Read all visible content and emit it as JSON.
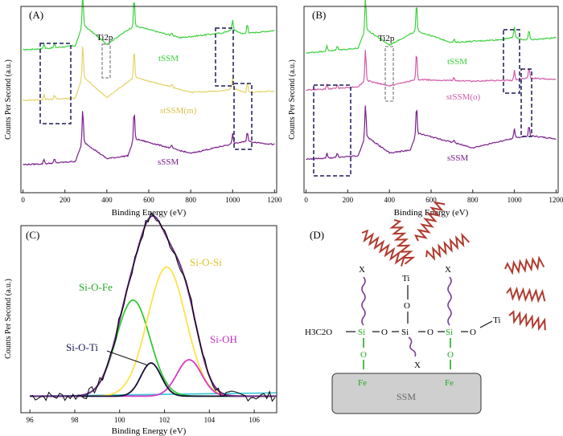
{
  "panels": {
    "A": {
      "label": "(A)",
      "ylabel": "Counts Per Second (a.u.)",
      "xlabel": "Binding Energy (eV)",
      "xticks": [
        "0",
        "200",
        "400",
        "600",
        "800",
        "1000",
        "1200"
      ],
      "annotation": "Ti2p",
      "series_labels": [
        "tSSM",
        "stSSM(m)",
        "sSSM"
      ]
    },
    "B": {
      "label": "(B)",
      "ylabel": "Counts Per Second (a.u.)",
      "xlabel": "Binding Energy (eV)",
      "xticks": [
        "0",
        "200",
        "400",
        "600",
        "800",
        "1000",
        "1200"
      ],
      "annotation": "Ti2p",
      "series_labels": [
        "tSSM",
        "stSSM(o)",
        "sSSM"
      ]
    },
    "C": {
      "label": "(C)",
      "ylabel": "Counts Per Second (a.u.)",
      "xlabel": "Binding Energy (eV)",
      "xticks": [
        "96",
        "98",
        "100",
        "102",
        "104",
        "106"
      ],
      "peak_labels": [
        "Si-O-Si",
        "Si-O-Fe",
        "Si-OH",
        "Si-O-Ti"
      ]
    },
    "D": {
      "label": "(D)",
      "substrate": "SSM",
      "group_left": "H3C2O",
      "atoms": {
        "si": "Si",
        "o": "O",
        "fe": "Fe",
        "ti": "Ti",
        "x": "X"
      }
    }
  },
  "colors": {
    "tSSM": "#3ed13e",
    "stSSM_m": "#e3d36a",
    "stSSM_o": "#d25aa8",
    "sSSM": "#7a1f8c",
    "si_o_fe": "#33cc33",
    "si_o_si": "#ffe14a",
    "si_oh": "#d838c8",
    "si_o_ti": "#111133",
    "envelope": "#6a2a8a",
    "baseline": "#35c7d6",
    "annotation_box": "#1a1a5c",
    "ti_box": "#888888",
    "polymer": "#b03a2e",
    "linker": "#7a3d9c",
    "substrate_fill": "#cfcfcf"
  },
  "chart_data": [
    {
      "type": "line",
      "panel": "A",
      "xlabel": "Binding Energy (eV)",
      "ylabel": "Counts Per Second (a.u.)",
      "xlim": [
        -10,
        1210
      ],
      "series": [
        {
          "name": "tSSM",
          "x": [
            0,
            100,
            250,
            285,
            400,
            530,
            750,
            950,
            1000,
            1050,
            1200
          ],
          "y": [
            0.32,
            0.35,
            0.42,
            0.95,
            0.46,
            0.92,
            0.62,
            0.74,
            0.82,
            0.72,
            0.8
          ]
        },
        {
          "name": "stSSM(m)",
          "x": [
            0,
            100,
            250,
            285,
            400,
            530,
            800,
            960,
            1000,
            1060,
            1200
          ],
          "y": [
            0.02,
            0.04,
            0.08,
            0.62,
            0.09,
            0.6,
            0.22,
            0.26,
            0.33,
            0.22,
            0.25
          ]
        },
        {
          "name": "sSSM",
          "x": [
            0,
            100,
            250,
            285,
            400,
            500,
            530,
            800,
            1000,
            1070,
            1200
          ],
          "y": [
            -0.3,
            -0.28,
            -0.22,
            0.28,
            -0.15,
            -0.08,
            0.35,
            -0.02,
            0.22,
            0.28,
            0.2
          ]
        }
      ]
    },
    {
      "type": "line",
      "panel": "B",
      "xlabel": "Binding Energy (eV)",
      "ylabel": "Counts Per Second (a.u.)",
      "xlim": [
        -10,
        1210
      ],
      "series": [
        {
          "name": "tSSM",
          "x": [
            0,
            100,
            250,
            285,
            400,
            530,
            700,
            950,
            1000,
            1050,
            1200
          ],
          "y": [
            0.4,
            0.45,
            0.52,
            1.0,
            0.6,
            0.95,
            0.66,
            0.74,
            0.8,
            0.72,
            0.78
          ]
        },
        {
          "name": "stSSM(o)",
          "x": [
            0,
            100,
            250,
            285,
            400,
            530,
            800,
            1000,
            1060,
            1200
          ],
          "y": [
            0.14,
            0.16,
            0.22,
            0.38,
            0.24,
            0.4,
            0.36,
            0.38,
            0.44,
            0.4
          ]
        },
        {
          "name": "sSSM",
          "x": [
            0,
            100,
            250,
            285,
            400,
            500,
            530,
            800,
            1000,
            1070,
            1200
          ],
          "y": [
            -0.3,
            -0.28,
            -0.22,
            0.28,
            -0.15,
            -0.08,
            0.35,
            -0.02,
            0.22,
            0.28,
            0.2
          ]
        }
      ]
    },
    {
      "type": "line",
      "panel": "C",
      "xlabel": "Binding Energy (eV)",
      "ylabel": "Counts Per Second (a.u.)",
      "xlim": [
        95.6,
        107
      ],
      "ylim": [
        -0.08,
        1.05
      ],
      "series": [
        {
          "name": "Si-O-Fe",
          "kind": "gauss",
          "center": 100.6,
          "height": 0.58,
          "sigma": 0.75
        },
        {
          "name": "Si-O-Si",
          "kind": "gauss",
          "center": 102.1,
          "height": 0.78,
          "sigma": 0.85
        },
        {
          "name": "Si-OH",
          "kind": "gauss",
          "center": 103.1,
          "height": 0.22,
          "sigma": 0.55
        },
        {
          "name": "Si-O-Ti",
          "kind": "gauss",
          "center": 101.4,
          "height": 0.2,
          "sigma": 0.45
        }
      ]
    }
  ]
}
